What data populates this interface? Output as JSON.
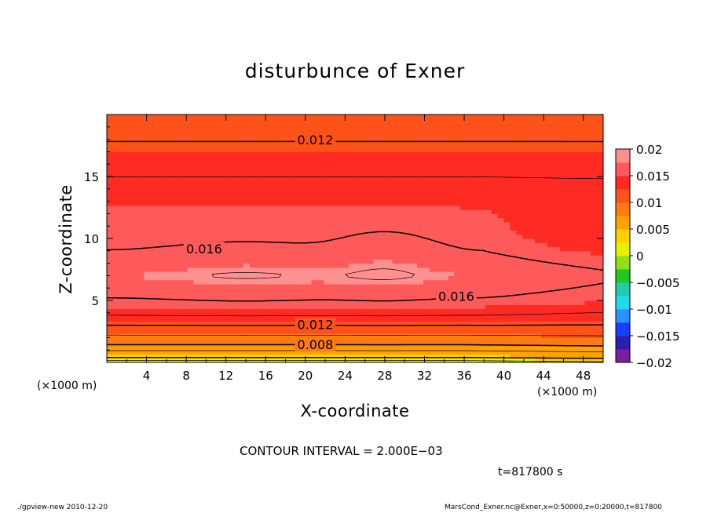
{
  "chart_data": {
    "type": "heatmap",
    "title": "disturbunce of Exner",
    "xlabel": "X-coordinate",
    "ylabel": "Z-coordinate",
    "x_unit_left": "(×1000 m)",
    "x_unit_right": "(×1000 m)",
    "xlim": [
      0,
      50
    ],
    "ylim": [
      0,
      20
    ],
    "x_ticks": [
      4,
      8,
      12,
      16,
      20,
      24,
      28,
      32,
      36,
      40,
      44,
      48
    ],
    "x_tick_labels": [
      "4",
      "8",
      "12",
      "16",
      "20",
      "24",
      "28",
      "32",
      "36",
      "40",
      "44",
      "48"
    ],
    "y_ticks": [
      5,
      10,
      15
    ],
    "y_tick_labels": [
      "5",
      "10",
      "15"
    ],
    "colorbar": {
      "range": [
        -0.02,
        0.02
      ],
      "tick_labels": [
        "0.02",
        "0.015",
        "0.01",
        "0.005",
        "0",
        "−0.005",
        "−0.01",
        "−0.015",
        "−0.02"
      ],
      "colors": [
        "#7a1fa0",
        "#2a1fb0",
        "#1440ff",
        "#2a90ff",
        "#22d8f0",
        "#22ccaa",
        "#20c820",
        "#90e018",
        "#e8f000",
        "#ffd000",
        "#ffa200",
        "#ff7a10",
        "#ff5218",
        "#ff2a22",
        "#ff5a5a",
        "#ff9090"
      ]
    },
    "contour_interval": 0.002,
    "contour_labels": [
      {
        "text": "0.012",
        "x": 21,
        "y": 17.9
      },
      {
        "text": "0.016",
        "x": 9.8,
        "y": 9.1
      },
      {
        "text": "0.016",
        "x": 35.2,
        "y": 5.3
      },
      {
        "text": "0.012",
        "x": 21,
        "y": 3.0
      },
      {
        "text": "0.008",
        "x": 21,
        "y": 1.4
      }
    ],
    "value_profile": {
      "description_z_values_at_x": [
        {
          "z": 0.5,
          "value": 0.004
        },
        {
          "z": 1.4,
          "value": 0.008
        },
        {
          "z": 2.2,
          "value": 0.01
        },
        {
          "z": 3.0,
          "value": 0.012
        },
        {
          "z": 3.8,
          "value": 0.014
        },
        {
          "z": 5.2,
          "value": 0.016
        },
        {
          "z": 7.0,
          "value": 0.0175
        },
        {
          "z": 9.0,
          "value": 0.016
        },
        {
          "z": 12.5,
          "value": 0.015
        },
        {
          "z": 15.0,
          "value": 0.014
        },
        {
          "z": 17.8,
          "value": 0.012
        },
        {
          "z": 19.5,
          "value": 0.0115
        }
      ]
    }
  },
  "annotations": {
    "contour_interval_text": "CONTOUR INTERVAL = 2.000E−03",
    "time_text": "t=817800 s",
    "footer_left": "./gpview-new  2010-12-20",
    "footer_right": "MarsCond_Exner.nc@Exner,x=0:50000,z=0:20000,t=817800"
  }
}
